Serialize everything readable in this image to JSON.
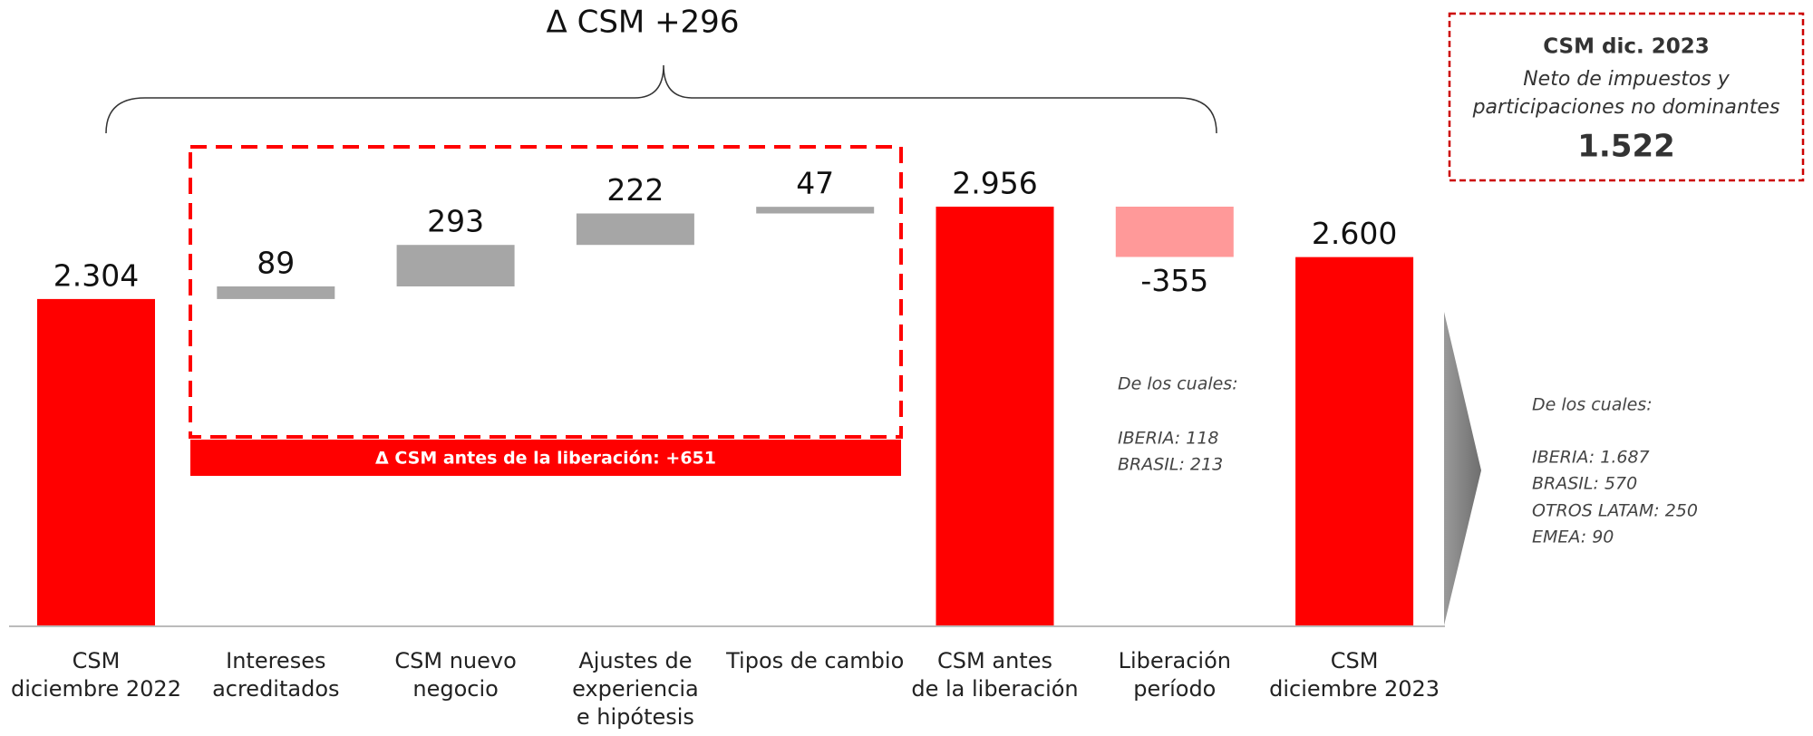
{
  "chart_data": {
    "type": "waterfall",
    "categories": [
      [
        "CSM",
        "diciembre 2022"
      ],
      [
        "Intereses",
        "acreditados"
      ],
      [
        "CSM nuevo",
        "negocio"
      ],
      [
        "Ajustes de",
        "experiencia",
        "e hipótesis"
      ],
      [
        "Tipos de cambio"
      ],
      [
        "CSM antes",
        "de la liberación"
      ],
      [
        "Liberación",
        "período"
      ],
      [
        "CSM",
        "diciembre 2023"
      ]
    ],
    "values": [
      2304,
      89,
      293,
      222,
      47,
      2956,
      -355,
      2600
    ],
    "value_labels": [
      "2.304",
      "89",
      "293",
      "222",
      "47",
      "2.956",
      "-355",
      "2.600"
    ],
    "is_total": [
      true,
      false,
      false,
      false,
      false,
      true,
      false,
      true
    ],
    "colors": [
      "#ff0000",
      "#a6a6a6",
      "#a6a6a6",
      "#a6a6a6",
      "#a6a6a6",
      "#ff0000",
      "#ff9999",
      "#ff0000"
    ],
    "annotations": {
      "brace_label": "Δ CSM +296",
      "banner_label": "Δ CSM antes de la liberación: +651",
      "box": {
        "title": "CSM dic. 2023",
        "subtitle": [
          "Neto de impuestos y",
          "participaciones no dominantes"
        ],
        "value": "1.522"
      },
      "release_note": [
        "De los cuales:",
        "IBERIA: 118",
        "BRASIL: 213"
      ],
      "final_note": [
        "De los cuales:",
        "IBERIA: 1.687",
        "BRASIL: 570",
        "OTROS LATAM: 250",
        "EMEA: 90"
      ]
    }
  }
}
